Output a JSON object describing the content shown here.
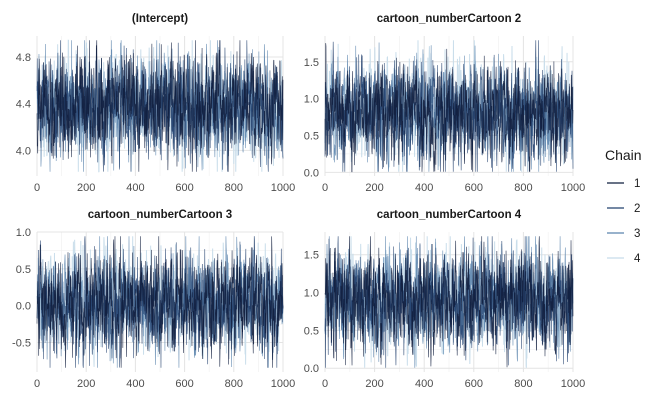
{
  "chart_data": {
    "type": "line",
    "facet_layout": "2x2",
    "legend": {
      "title": "Chain",
      "position": "right",
      "entries": [
        {
          "name": "1",
          "color": "#0f1d3d"
        },
        {
          "name": "2",
          "color": "#22406e"
        },
        {
          "name": "3",
          "color": "#5b84ad"
        },
        {
          "name": "4",
          "color": "#c7dcea"
        }
      ]
    },
    "panels": [
      {
        "title": "(Intercept)",
        "xlim": [
          0,
          1000
        ],
        "ylim": [
          3.78,
          4.98
        ],
        "xticks": [
          0,
          200,
          400,
          600,
          800,
          1000
        ],
        "yticks": [
          4.0,
          4.4,
          4.8
        ],
        "ytick_labels": [
          "4.0",
          "4.4",
          "4.8"
        ],
        "center": 4.38,
        "spread": 0.2,
        "seed": 11
      },
      {
        "title": "cartoon_numberCartoon 2",
        "xlim": [
          0,
          1000
        ],
        "ylim": [
          -0.05,
          1.85
        ],
        "xticks": [
          0,
          200,
          400,
          600,
          800,
          1000
        ],
        "yticks": [
          0.0,
          0.5,
          1.0,
          1.5
        ],
        "ytick_labels": [
          "0.0",
          "0.5",
          "1.0",
          "1.5"
        ],
        "center": 0.82,
        "spread": 0.3,
        "seed": 23
      },
      {
        "title": "cartoon_numberCartoon 3",
        "xlim": [
          0,
          1000
        ],
        "ylim": [
          -0.9,
          1.0
        ],
        "xticks": [
          0,
          200,
          400,
          600,
          800,
          1000
        ],
        "yticks": [
          -0.5,
          0.0,
          0.5,
          1.0
        ],
        "ytick_labels": [
          "-0.5",
          "0.0",
          "0.5",
          "1.0"
        ],
        "center": 0.03,
        "spread": 0.3,
        "seed": 37
      },
      {
        "title": "cartoon_numberCartoon 4",
        "xlim": [
          0,
          1000
        ],
        "ylim": [
          -0.05,
          1.8
        ],
        "xticks": [
          0,
          200,
          400,
          600,
          800,
          1000
        ],
        "yticks": [
          0.0,
          0.5,
          1.0,
          1.5
        ],
        "ytick_labels": [
          "0.0",
          "0.5",
          "1.0",
          "1.5"
        ],
        "center": 0.9,
        "spread": 0.3,
        "seed": 53
      }
    ]
  }
}
